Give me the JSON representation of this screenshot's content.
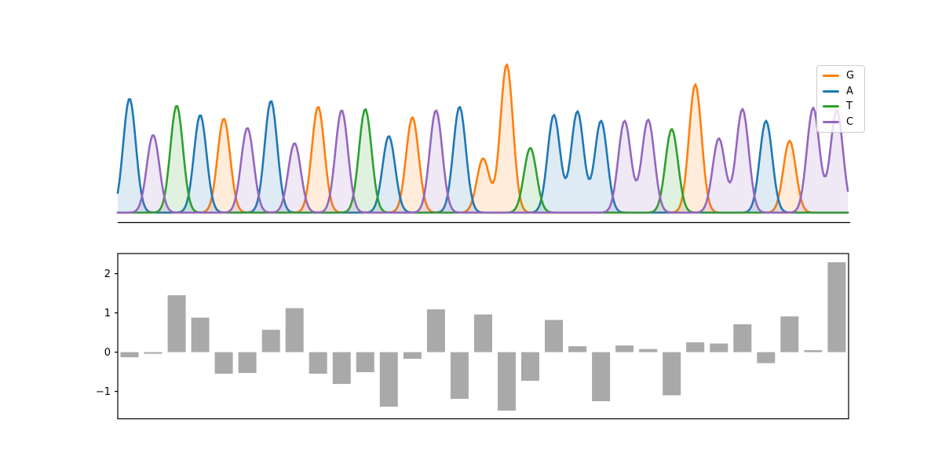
{
  "page": {
    "background": "#ffffff"
  },
  "chart_data": [
    {
      "type": "area",
      "name": "sanger-chromatogram-trace",
      "title": "",
      "xlabel": "",
      "ylabel": "",
      "sequence": "ACTAGCACGCTAGCAGGTAAACCTGCCAGCC",
      "peak_heights": [
        0.97,
        0.66,
        0.91,
        0.83,
        0.8,
        0.72,
        0.95,
        0.59,
        0.9,
        0.87,
        0.88,
        0.65,
        0.81,
        0.87,
        0.9,
        0.46,
        1.26,
        0.55,
        0.83,
        0.86,
        0.78,
        0.78,
        0.79,
        0.71,
        1.09,
        0.63,
        0.88,
        0.78,
        0.61,
        0.89,
        0.87
      ],
      "channels": {
        "G": "#ff7f0e",
        "A": "#1f77b4",
        "T": "#2ca02c",
        "C": "#9467bd"
      },
      "fill_alpha": 0.15,
      "line_width": 2.6,
      "axes_style": "only bottom spine, no ticks, no tick labels",
      "legend": {
        "position": "upper-right",
        "entries": [
          {
            "label": "G",
            "color": "#ff7f0e"
          },
          {
            "label": "A",
            "color": "#1f77b4"
          },
          {
            "label": "T",
            "color": "#2ca02c"
          },
          {
            "label": "C",
            "color": "#9467bd"
          }
        ]
      }
    },
    {
      "type": "bar",
      "name": "per-position-values",
      "title": "",
      "xlabel": "",
      "ylabel": "",
      "values": [
        -0.13,
        -0.04,
        1.45,
        0.88,
        -0.55,
        -0.53,
        0.57,
        1.12,
        -0.55,
        -0.81,
        -0.51,
        -1.39,
        -0.17,
        1.09,
        -1.19,
        0.96,
        -1.49,
        -0.73,
        0.82,
        0.15,
        -1.25,
        0.17,
        0.08,
        -1.1,
        0.25,
        0.22,
        0.71,
        -0.28,
        0.91,
        0.05,
        2.29
      ],
      "bar_color": "#a9a9a9",
      "yticks": [
        2,
        1,
        0,
        -1
      ],
      "ytick_labels": [
        "2",
        "1",
        "0",
        "−1"
      ],
      "ylim": [
        -1.7,
        2.51
      ],
      "x_axis": "unlabeled, one bar per sequence position, aligned with chromatogram peaks",
      "grid": false
    }
  ]
}
